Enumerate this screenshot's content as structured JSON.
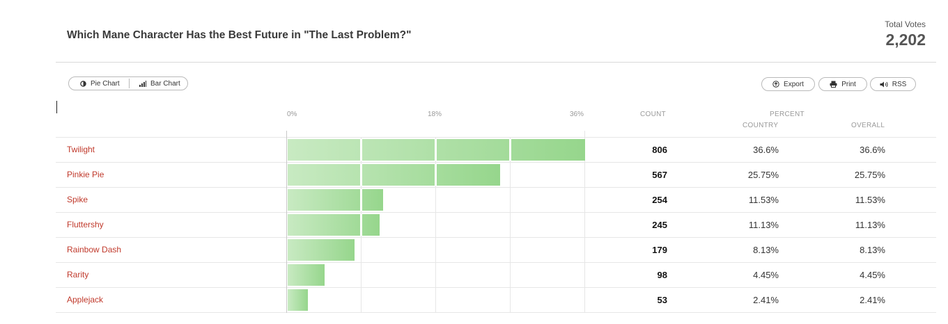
{
  "title": "Which Mane Character Has the Best Future in \"The Last Problem?\"",
  "total_votes": {
    "label": "Total Votes",
    "value": "2,202"
  },
  "view_toggle": {
    "pie_label": "Pie Chart",
    "bar_label": "Bar Chart"
  },
  "toolbar": {
    "export_label": "Export",
    "print_label": "Print",
    "rss_label": "RSS"
  },
  "axis_ticks": [
    "0%",
    "18%",
    "36%"
  ],
  "columns": {
    "count": "COUNT",
    "percent": "PERCENT",
    "country": "COUNTRY",
    "overall": "OVERALL"
  },
  "colors": {
    "label": "#c0392b",
    "bar_start": "#c8eac2",
    "bar_end": "#96d68c"
  },
  "chart_data": {
    "type": "bar",
    "orientation": "horizontal",
    "title": "Which Mane Character Has the Best Future in \"The Last Problem?\"",
    "categories": [
      "Twilight",
      "Pinkie Pie",
      "Spike",
      "Fluttershy",
      "Rainbow Dash",
      "Rarity",
      "Applejack"
    ],
    "counts": [
      806,
      567,
      254,
      245,
      179,
      98,
      53
    ],
    "values": [
      36.6,
      25.75,
      11.53,
      11.13,
      8.13,
      4.45,
      2.41
    ],
    "percent_country": [
      "36.6%",
      "25.75%",
      "11.53%",
      "11.13%",
      "8.13%",
      "4.45%",
      "2.41%"
    ],
    "percent_overall": [
      "36.6%",
      "25.75%",
      "11.53%",
      "11.13%",
      "8.13%",
      "4.45%",
      "2.41%"
    ],
    "xlim": [
      0,
      36
    ],
    "xticks": [
      "0%",
      "18%",
      "36%"
    ]
  },
  "rows": [
    {
      "name": "Twilight",
      "count": "806",
      "country": "36.6%",
      "overall": "36.6%"
    },
    {
      "name": "Pinkie Pie",
      "count": "567",
      "country": "25.75%",
      "overall": "25.75%"
    },
    {
      "name": "Spike",
      "count": "254",
      "country": "11.53%",
      "overall": "11.53%"
    },
    {
      "name": "Fluttershy",
      "count": "245",
      "country": "11.13%",
      "overall": "11.13%"
    },
    {
      "name": "Rainbow Dash",
      "count": "179",
      "country": "8.13%",
      "overall": "8.13%"
    },
    {
      "name": "Rarity",
      "count": "98",
      "country": "4.45%",
      "overall": "4.45%"
    },
    {
      "name": "Applejack",
      "count": "53",
      "country": "2.41%",
      "overall": "2.41%"
    }
  ]
}
